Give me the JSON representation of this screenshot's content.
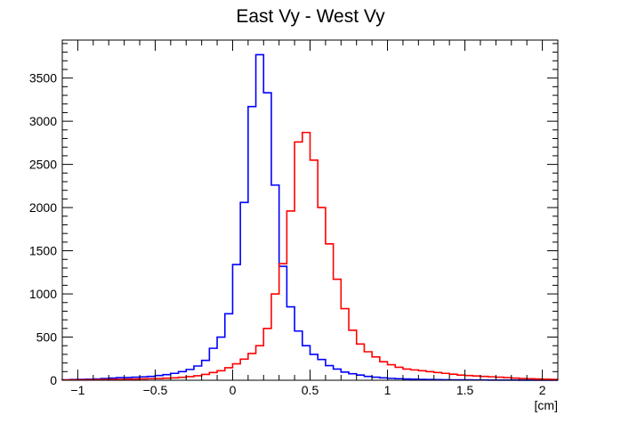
{
  "chart_data": {
    "type": "histogram",
    "title": "East Vy - West Vy",
    "xlabel": "[cm]",
    "ylabel": "",
    "xlim": [
      -1.1,
      2.1
    ],
    "ylim": [
      0,
      3940
    ],
    "bin_width": 0.05,
    "x_ticks": [
      {
        "value": -1,
        "label": "−1"
      },
      {
        "value": -0.5,
        "label": "−0.5"
      },
      {
        "value": 0,
        "label": "0"
      },
      {
        "value": 0.5,
        "label": "0.5"
      },
      {
        "value": 1,
        "label": "1"
      },
      {
        "value": 1.5,
        "label": "1.5"
      },
      {
        "value": 2,
        "label": "2"
      }
    ],
    "y_ticks": [
      {
        "value": 0,
        "label": "0"
      },
      {
        "value": 500,
        "label": "500"
      },
      {
        "value": 1000,
        "label": "1000"
      },
      {
        "value": 1500,
        "label": "1500"
      },
      {
        "value": 2000,
        "label": "2000"
      },
      {
        "value": 2500,
        "label": "2500"
      },
      {
        "value": 3000,
        "label": "3000"
      },
      {
        "value": 3500,
        "label": "3500"
      }
    ],
    "x_minor_step": 0.1,
    "y_minor_step": 100,
    "grid": false,
    "legend": "none",
    "series": [
      {
        "color": "#0000ff",
        "x_start": -1.1,
        "values": [
          5,
          8,
          10,
          12,
          15,
          20,
          25,
          30,
          32,
          35,
          40,
          45,
          55,
          65,
          80,
          100,
          125,
          165,
          230,
          370,
          500,
          770,
          1340,
          2060,
          3170,
          3770,
          3330,
          2260,
          1320,
          850,
          570,
          400,
          300,
          240,
          170,
          130,
          95,
          75,
          60,
          45,
          35,
          28,
          22,
          18,
          15,
          12,
          10,
          8,
          7,
          6,
          5,
          4,
          4,
          3,
          3,
          2,
          2,
          2,
          2,
          1,
          1,
          1,
          1,
          1
        ]
      },
      {
        "color": "#ff0000",
        "x_start": -1.1,
        "values": [
          3,
          4,
          5,
          6,
          7,
          8,
          9,
          10,
          12,
          14,
          16,
          18,
          20,
          24,
          28,
          34,
          42,
          52,
          68,
          90,
          110,
          145,
          190,
          245,
          310,
          400,
          600,
          1000,
          1350,
          1960,
          2760,
          2870,
          2550,
          2000,
          1580,
          1170,
          830,
          580,
          420,
          330,
          270,
          215,
          180,
          150,
          130,
          120,
          110,
          100,
          90,
          80,
          70,
          60,
          55,
          50,
          45,
          40,
          35,
          30,
          25,
          20,
          18,
          15,
          12,
          10
        ]
      }
    ]
  }
}
